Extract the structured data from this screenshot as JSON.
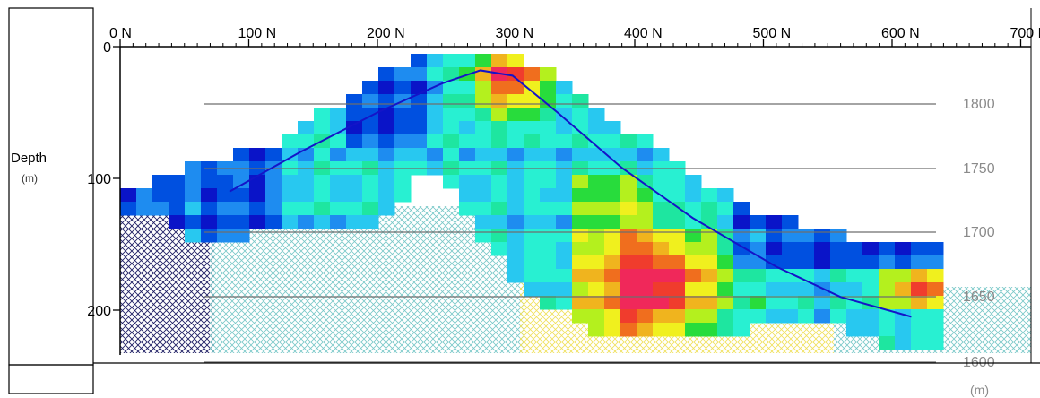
{
  "chart_data": {
    "type": "heatmap",
    "title": "",
    "top_axis": {
      "ticks": [
        0,
        100,
        200,
        300,
        400,
        500,
        600,
        700
      ],
      "tick_labels": [
        "0 N",
        "100 N",
        "200 N",
        "300 N",
        "400 N",
        "500 N",
        "600 N",
        "700 N"
      ]
    },
    "left_axis": {
      "label": "Depth",
      "unit": "(m)",
      "ticks": [
        0,
        100,
        200
      ],
      "tick_labels": [
        "0",
        "100",
        "200"
      ],
      "range": [
        0,
        235
      ]
    },
    "right_axis": {
      "unit": "(m)",
      "ticks": [
        1800,
        1750,
        1700,
        1650,
        1600
      ],
      "tick_labels": [
        "1800",
        "1750",
        "1700",
        "1650",
        "1600"
      ]
    },
    "profile_line": {
      "color": "#1414c8",
      "x": [
        85,
        140,
        200,
        250,
        280,
        305,
        340,
        390,
        445,
        510,
        560,
        615
      ],
      "depth": [
        110,
        80,
        50,
        28,
        18,
        22,
        50,
        92,
        130,
        167,
        190,
        205
      ]
    },
    "colorscale": [
      "#0a14c8",
      "#0050e0",
      "#1e8cf0",
      "#28c8f0",
      "#28f0d2",
      "#1ee6a0",
      "#28dc3c",
      "#b4f01e",
      "#f0f01e",
      "#f0b41e",
      "#f06e1e",
      "#f03c2d",
      "#f0285a"
    ],
    "colors": {
      "axis": "#000000",
      "elevation_lines": "#6e6e6e",
      "hatch_dark": "#1e1e64",
      "hatch_light": "#78c8c8",
      "hatch_yellow": "#f0e05a"
    }
  }
}
